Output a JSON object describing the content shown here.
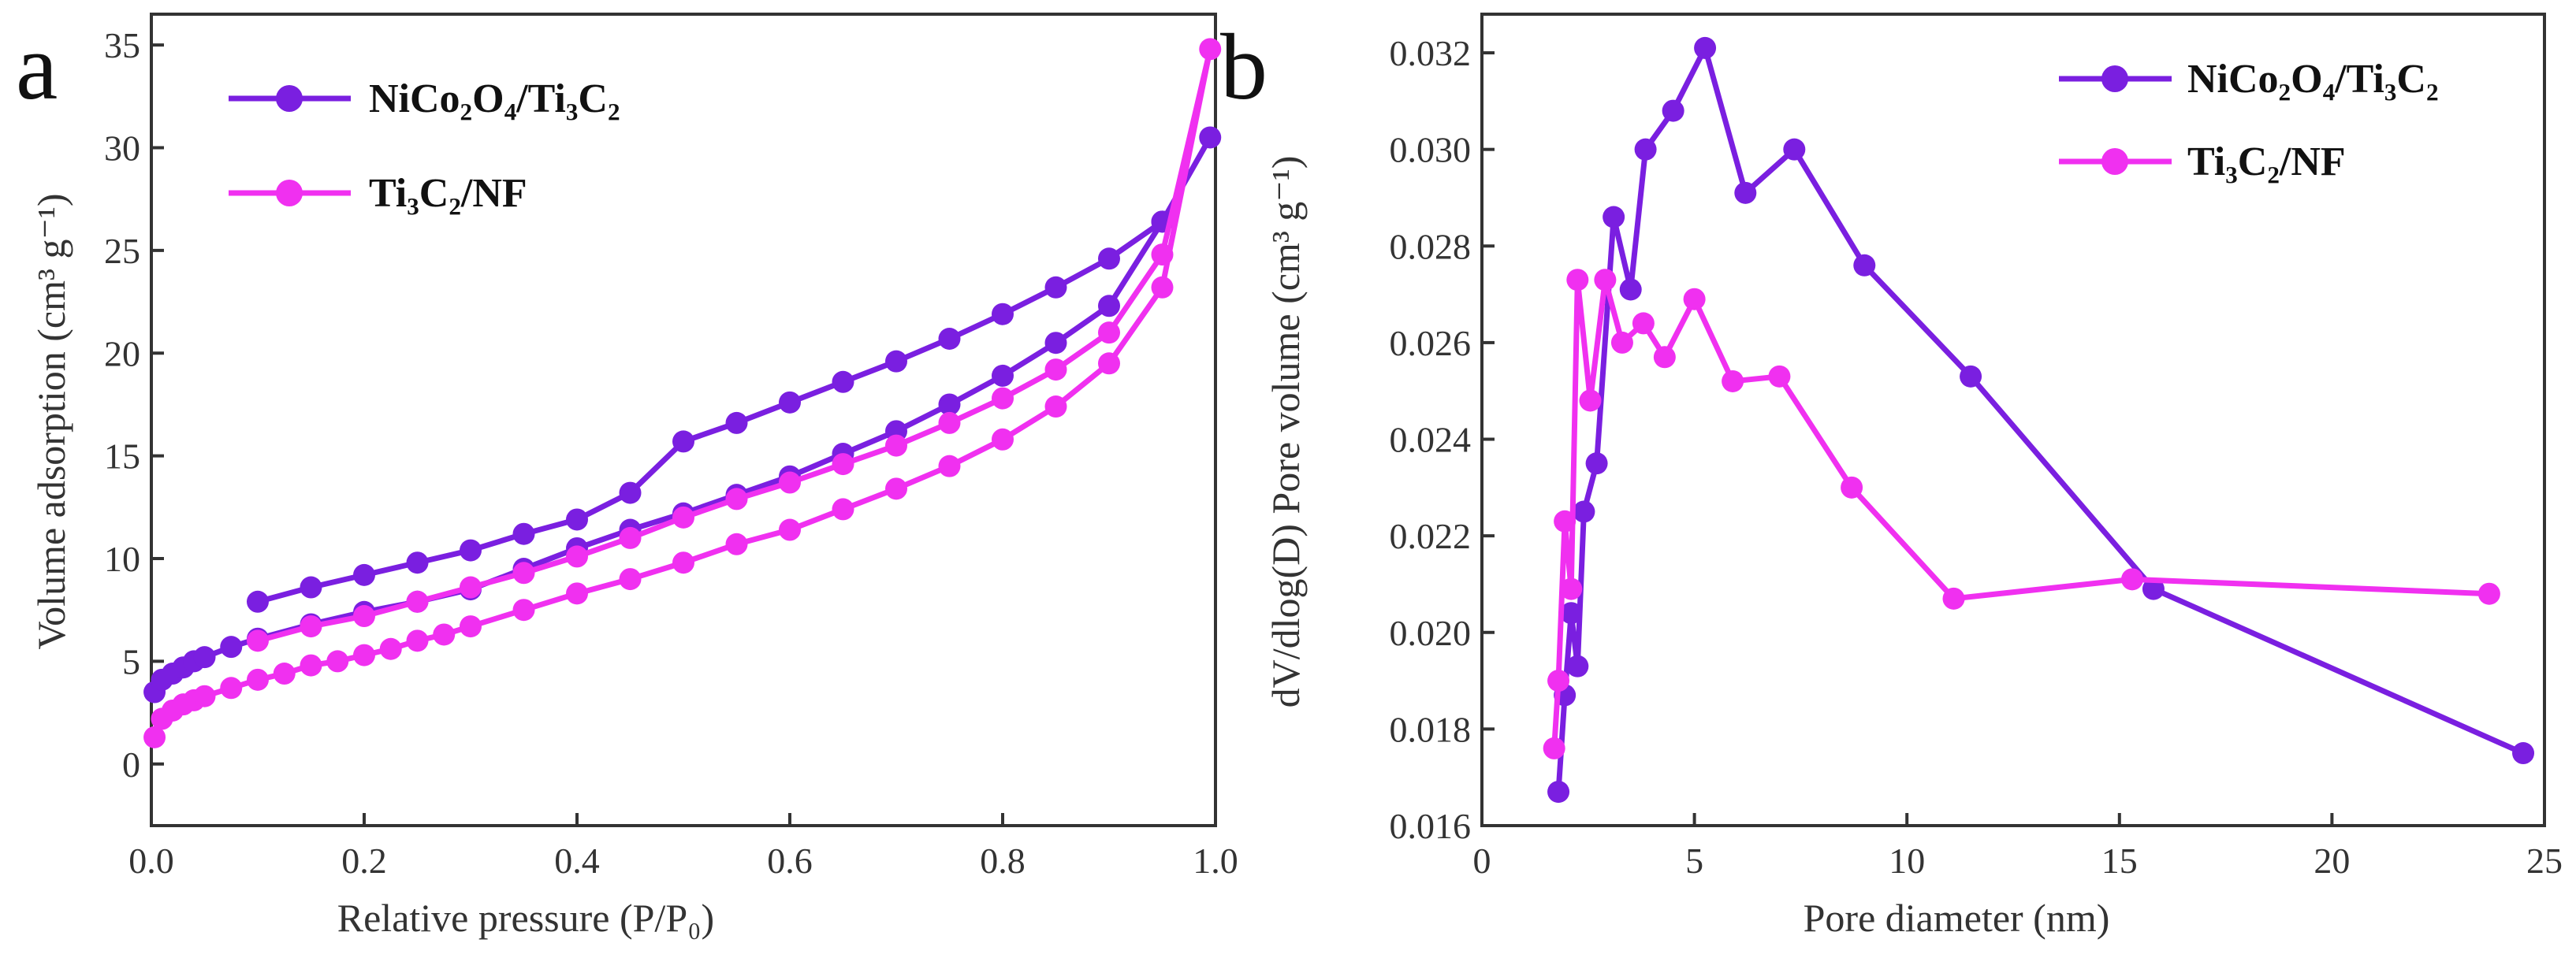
{
  "chart_data": [
    {
      "type": "line",
      "panel_label": "a",
      "xlabel": "Relative pressure (P/P₀)",
      "ylabel": "Volume adsorption (cm³ g⁻¹)",
      "xlim": [
        0.0,
        1.0
      ],
      "ylim": [
        -3,
        36.5
      ],
      "xticks": [
        "0.0",
        "0.2",
        "0.4",
        "0.6",
        "0.8",
        "1.0"
      ],
      "yticks": [
        "0",
        "5",
        "10",
        "15",
        "20",
        "25",
        "30",
        "35"
      ],
      "legend_position": "top-left",
      "series": [
        {
          "name": "NiCo₂O₄/Ti₃C₂",
          "color": "#7a1fe0",
          "x": [
            0.003,
            0.01,
            0.02,
            0.03,
            0.04,
            0.05,
            0.075,
            0.1,
            0.15,
            0.2,
            0.25,
            0.3,
            0.35,
            0.4,
            0.45,
            0.5,
            0.55,
            0.6,
            0.65,
            0.7,
            0.75,
            0.8,
            0.85,
            0.9,
            0.95,
            0.995,
            0.95,
            0.9,
            0.85,
            0.8,
            0.75,
            0.7,
            0.65,
            0.6,
            0.55,
            0.5,
            0.45,
            0.4,
            0.35,
            0.3,
            0.25,
            0.2,
            0.15,
            0.1
          ],
          "y": [
            3.5,
            4.1,
            4.4,
            4.7,
            5.0,
            5.2,
            5.7,
            6.1,
            6.8,
            7.4,
            7.9,
            8.5,
            9.5,
            10.5,
            11.4,
            12.2,
            13.1,
            14.0,
            15.1,
            16.2,
            17.5,
            18.9,
            20.5,
            22.3,
            26.4,
            30.5,
            26.4,
            24.6,
            23.2,
            21.9,
            20.7,
            19.6,
            18.6,
            17.6,
            16.6,
            15.7,
            13.2,
            11.9,
            11.2,
            10.4,
            9.8,
            9.2,
            8.6,
            7.9
          ]
        },
        {
          "name": "Ti₃C₂/NF",
          "color": "#f030f0",
          "x": [
            0.003,
            0.01,
            0.02,
            0.03,
            0.04,
            0.05,
            0.075,
            0.1,
            0.125,
            0.15,
            0.175,
            0.2,
            0.225,
            0.25,
            0.275,
            0.3,
            0.35,
            0.4,
            0.45,
            0.5,
            0.55,
            0.6,
            0.65,
            0.7,
            0.75,
            0.8,
            0.85,
            0.9,
            0.95,
            0.995,
            0.95,
            0.9,
            0.85,
            0.8,
            0.75,
            0.7,
            0.65,
            0.6,
            0.55,
            0.5,
            0.45,
            0.4,
            0.35,
            0.3,
            0.25,
            0.2,
            0.15,
            0.1
          ],
          "y": [
            1.3,
            2.2,
            2.6,
            2.9,
            3.1,
            3.3,
            3.7,
            4.1,
            4.4,
            4.8,
            5.0,
            5.3,
            5.6,
            6.0,
            6.3,
            6.7,
            7.5,
            8.3,
            9.0,
            9.8,
            10.7,
            11.4,
            12.4,
            13.4,
            14.5,
            15.8,
            17.4,
            19.5,
            23.2,
            34.8,
            24.8,
            21.0,
            19.2,
            17.8,
            16.6,
            15.5,
            14.6,
            13.7,
            12.9,
            12.0,
            11.0,
            10.1,
            9.3,
            8.6,
            7.9,
            7.2,
            6.7,
            6.0
          ]
        }
      ]
    },
    {
      "type": "line",
      "panel_label": "b",
      "xlabel": "Pore diameter (nm)",
      "ylabel": "dV/dlog(D) Pore volume (cm³ g⁻¹)",
      "xlim": [
        0,
        25
      ],
      "ylim": [
        0.016,
        0.0328
      ],
      "xticks": [
        "0",
        "5",
        "10",
        "15",
        "20",
        "25"
      ],
      "yticks": [
        "0.016",
        "0.018",
        "0.020",
        "0.022",
        "0.024",
        "0.026",
        "0.028",
        "0.030",
        "0.032"
      ],
      "legend_position": "top-right",
      "series": [
        {
          "name": "NiCo₂O₄/Ti₃C₂",
          "color": "#7a1fe0",
          "x": [
            1.8,
            1.95,
            2.1,
            2.25,
            2.4,
            2.7,
            3.1,
            3.5,
            3.85,
            4.5,
            5.25,
            6.2,
            7.35,
            9.0,
            11.5,
            15.8,
            24.5
          ],
          "y": [
            0.0167,
            0.0187,
            0.0204,
            0.0193,
            0.0225,
            0.0235,
            0.0286,
            0.0271,
            0.03,
            0.0308,
            0.0321,
            0.0291,
            0.03,
            0.0276,
            0.0253,
            0.0209,
            0.0175
          ]
        },
        {
          "name": "Ti₃C₂/NF",
          "color": "#f030f0",
          "x": [
            1.7,
            1.8,
            1.95,
            2.1,
            2.25,
            2.55,
            2.9,
            3.3,
            3.8,
            4.3,
            5.0,
            5.9,
            7.0,
            8.7,
            11.1,
            15.3,
            23.7
          ],
          "y": [
            0.0176,
            0.019,
            0.0223,
            0.0209,
            0.0273,
            0.0248,
            0.0273,
            0.026,
            0.0264,
            0.0257,
            0.0269,
            0.0252,
            0.0253,
            0.023,
            0.0207,
            0.0211,
            0.0208
          ]
        }
      ]
    }
  ]
}
